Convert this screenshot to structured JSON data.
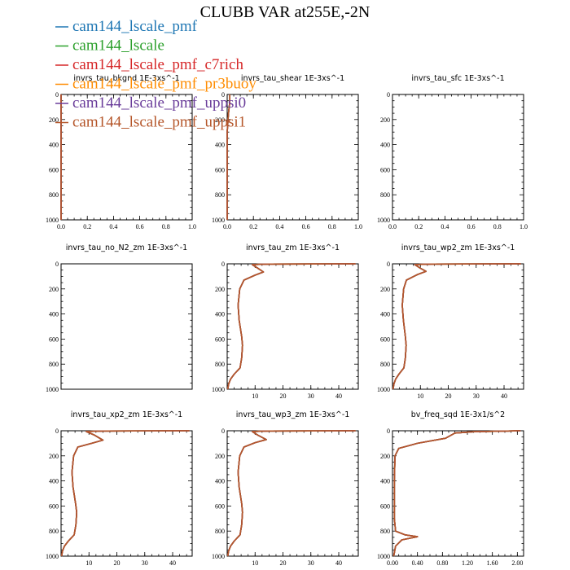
{
  "title": "CLUBB VAR at255E,-2N",
  "legend": [
    {
      "name": "cam144_lscale_pmf",
      "color": "#1f77b4"
    },
    {
      "name": "cam144_lscale",
      "color": "#2ca02c"
    },
    {
      "name": "cam144_lscale_pmf_c7rich",
      "color": "#d62728"
    },
    {
      "name": "cam144_lscale_pmf_pr3buoy",
      "color": "#ff8c00"
    },
    {
      "name": "cam144_lscale_pmf_uppsi0",
      "color": "#6a3d9a"
    },
    {
      "name": "cam144_lscale_pmf_uppsi1",
      "color": "#b5562a"
    }
  ],
  "chart_data": [
    {
      "type": "line",
      "title": "invrs_tau_bkgnd   1E-3xs^-1",
      "xlim": [
        0,
        1
      ],
      "ylim": [
        1000,
        0
      ],
      "xticks": [
        "0.0",
        "0.2",
        "0.4",
        "0.6",
        "0.8",
        "1.0"
      ],
      "xtick_values": [
        0,
        0.2,
        0.4,
        0.6,
        0.8,
        1.0
      ],
      "yticks": [
        "0",
        "200",
        "400",
        "600",
        "800",
        "1000"
      ],
      "profile": [
        [
          0.0,
          0
        ],
        [
          0.0,
          1000
        ]
      ]
    },
    {
      "type": "line",
      "title": "invrs_tau_shear   1E-3xs^-1",
      "xlim": [
        0,
        1
      ],
      "ylim": [
        1000,
        0
      ],
      "xticks": [
        "0.0",
        "0.2",
        "0.4",
        "0.6",
        "0.8",
        "1.0"
      ],
      "xtick_values": [
        0,
        0.2,
        0.4,
        0.6,
        0.8,
        1.0
      ],
      "yticks": [
        "0",
        "200",
        "400",
        "600",
        "800",
        "1000"
      ],
      "profile": [
        [
          0.02,
          0
        ],
        [
          0.02,
          60
        ],
        [
          0.01,
          150
        ],
        [
          0.0,
          300
        ],
        [
          0.0,
          1000
        ]
      ]
    },
    {
      "type": "line",
      "title": "invrs_tau_sfc   1E-3xs^-1",
      "xlim": [
        0,
        1
      ],
      "ylim": [
        1000,
        0
      ],
      "xticks": [
        "0.0",
        "0.2",
        "0.4",
        "0.6",
        "0.8",
        "1.0"
      ],
      "xtick_values": [
        0,
        0.2,
        0.4,
        0.6,
        0.8,
        1.0
      ],
      "yticks": [
        "0",
        "200",
        "400",
        "600",
        "800",
        "1000"
      ],
      "profile": []
    },
    {
      "type": "line",
      "title": "invrs_tau_no_N2_zm   1E-3xs^-1",
      "xlim": [
        0,
        1
      ],
      "ylim": [
        1000,
        0
      ],
      "xticks": [],
      "xtick_values": [],
      "yticks": [
        "0",
        "200",
        "400",
        "600",
        "800",
        "1000"
      ],
      "profile": []
    },
    {
      "type": "line",
      "title": "invrs_tau_zm   1E-3xs^-1",
      "xlim": [
        0,
        47
      ],
      "ylim": [
        1000,
        0
      ],
      "xticks": [
        "10",
        "20",
        "30",
        "40"
      ],
      "xtick_values": [
        10,
        20,
        30,
        40
      ],
      "yticks": [
        "0",
        "200",
        "400",
        "600",
        "800",
        "1000"
      ],
      "profile": [
        [
          46,
          0
        ],
        [
          15,
          2
        ],
        [
          9,
          6
        ],
        [
          11,
          35
        ],
        [
          13,
          65
        ],
        [
          10,
          90
        ],
        [
          6,
          130
        ],
        [
          4.5,
          200
        ],
        [
          3.9,
          330
        ],
        [
          4.3,
          450
        ],
        [
          5.2,
          580
        ],
        [
          5.5,
          650
        ],
        [
          5.2,
          750
        ],
        [
          4.6,
          830
        ],
        [
          2.5,
          880
        ],
        [
          1.2,
          920
        ],
        [
          0.5,
          960
        ],
        [
          0.2,
          1000
        ]
      ]
    },
    {
      "type": "line",
      "title": "invrs_tau_wp2_zm   1E-3xs^-1",
      "xlim": [
        0,
        47
      ],
      "ylim": [
        1000,
        0
      ],
      "xticks": [
        "10",
        "20",
        "30",
        "40"
      ],
      "xtick_values": [
        10,
        20,
        30,
        40
      ],
      "yticks": [
        "0",
        "200",
        "400",
        "600",
        "800",
        "1000"
      ],
      "profile": [
        [
          46,
          0
        ],
        [
          14,
          2
        ],
        [
          8,
          6
        ],
        [
          10,
          35
        ],
        [
          12,
          60
        ],
        [
          9,
          85
        ],
        [
          5,
          130
        ],
        [
          4,
          200
        ],
        [
          3.5,
          330
        ],
        [
          3.9,
          450
        ],
        [
          4.6,
          580
        ],
        [
          4.9,
          650
        ],
        [
          4.6,
          750
        ],
        [
          4.1,
          830
        ],
        [
          2.3,
          880
        ],
        [
          1.1,
          920
        ],
        [
          0.5,
          960
        ],
        [
          0.2,
          1000
        ]
      ]
    },
    {
      "type": "line",
      "title": "invrs_tau_xp2_zm   1E-3xs^-1",
      "xlim": [
        0,
        47
      ],
      "ylim": [
        1000,
        0
      ],
      "xticks": [
        "10",
        "20",
        "30",
        "40"
      ],
      "xtick_values": [
        10,
        20,
        30,
        40
      ],
      "yticks": [
        "0",
        "200",
        "400",
        "600",
        "800",
        "1000"
      ],
      "profile": [
        [
          46,
          0
        ],
        [
          16,
          2
        ],
        [
          9,
          6
        ],
        [
          12,
          35
        ],
        [
          15,
          75
        ],
        [
          11,
          100
        ],
        [
          6,
          130
        ],
        [
          4.5,
          200
        ],
        [
          3.9,
          330
        ],
        [
          4.3,
          450
        ],
        [
          5.2,
          580
        ],
        [
          5.6,
          650
        ],
        [
          5.3,
          750
        ],
        [
          4.7,
          830
        ],
        [
          2.6,
          880
        ],
        [
          1.2,
          920
        ],
        [
          0.5,
          960
        ],
        [
          0.2,
          1000
        ]
      ]
    },
    {
      "type": "line",
      "title": "invrs_tau_wp3_zm   1E-3xs^-1",
      "xlim": [
        0,
        47
      ],
      "ylim": [
        1000,
        0
      ],
      "xticks": [
        "10",
        "20",
        "30",
        "40"
      ],
      "xtick_values": [
        10,
        20,
        30,
        40
      ],
      "yticks": [
        "0",
        "200",
        "400",
        "600",
        "800",
        "1000"
      ],
      "profile": [
        [
          46,
          0
        ],
        [
          15,
          2
        ],
        [
          9,
          6
        ],
        [
          11,
          35
        ],
        [
          14,
          70
        ],
        [
          10,
          95
        ],
        [
          6,
          130
        ],
        [
          4.5,
          200
        ],
        [
          3.9,
          330
        ],
        [
          4.3,
          450
        ],
        [
          5.2,
          580
        ],
        [
          5.5,
          650
        ],
        [
          5.2,
          750
        ],
        [
          4.6,
          830
        ],
        [
          2.5,
          880
        ],
        [
          1.2,
          920
        ],
        [
          0.5,
          960
        ],
        [
          0.2,
          1000
        ]
      ]
    },
    {
      "type": "line",
      "title": "bv_freq_sqd   1E-3x1/s^2",
      "xlim": [
        0,
        2.1
      ],
      "ylim": [
        1000,
        0
      ],
      "xticks": [
        "0.00",
        "0.40",
        "0.80",
        "1.20",
        "1.60",
        "2.00"
      ],
      "xtick_values": [
        0,
        0.4,
        0.8,
        1.2,
        1.6,
        2.0
      ],
      "yticks": [
        "0",
        "200",
        "400",
        "600",
        "800",
        "1000"
      ],
      "profile": [
        [
          2.05,
          0
        ],
        [
          1.3,
          8
        ],
        [
          1.0,
          18
        ],
        [
          0.85,
          60
        ],
        [
          0.4,
          100
        ],
        [
          0.1,
          140
        ],
        [
          0.04,
          200
        ],
        [
          0.03,
          400
        ],
        [
          0.03,
          700
        ],
        [
          0.05,
          800
        ],
        [
          0.2,
          830
        ],
        [
          0.4,
          845
        ],
        [
          0.15,
          870
        ],
        [
          0.05,
          920
        ],
        [
          0.02,
          1000
        ]
      ]
    }
  ]
}
